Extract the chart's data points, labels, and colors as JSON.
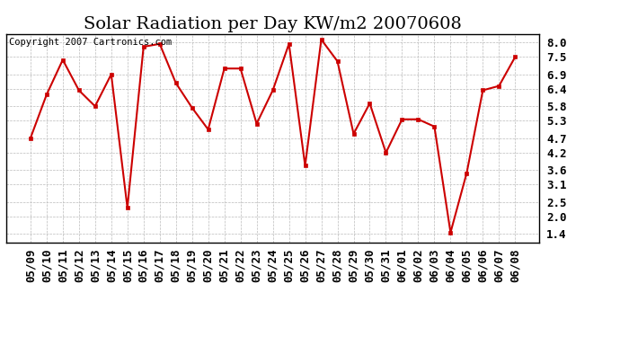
{
  "title": "Solar Radiation per Day KW/m2 20070608",
  "copyright_text": "Copyright 2007 Cartronics.com",
  "dates": [
    "05/09",
    "05/10",
    "05/11",
    "05/12",
    "05/13",
    "05/14",
    "05/15",
    "05/16",
    "05/17",
    "05/18",
    "05/19",
    "05/20",
    "05/21",
    "05/22",
    "05/23",
    "05/24",
    "05/25",
    "05/26",
    "05/27",
    "05/28",
    "05/29",
    "05/30",
    "05/31",
    "06/01",
    "06/02",
    "06/03",
    "06/04",
    "06/05",
    "06/06",
    "06/07",
    "06/08"
  ],
  "values": [
    4.7,
    6.2,
    7.4,
    6.35,
    5.8,
    6.9,
    2.3,
    7.85,
    7.95,
    6.6,
    5.75,
    5.0,
    7.1,
    7.1,
    5.2,
    6.35,
    7.95,
    3.75,
    8.1,
    7.35,
    4.85,
    5.9,
    4.2,
    5.35,
    5.35,
    5.1,
    1.45,
    3.5,
    6.35,
    6.5,
    7.5
  ],
  "line_color": "#cc0000",
  "marker_color": "#cc0000",
  "bg_color": "#ffffff",
  "grid_color": "#bbbbbb",
  "ylim": [
    1.1,
    8.3
  ],
  "yticks": [
    1.4,
    2.0,
    2.5,
    3.1,
    3.6,
    4.2,
    4.7,
    5.3,
    5.8,
    6.4,
    6.9,
    7.5,
    8.0
  ],
  "title_fontsize": 14,
  "tick_fontsize": 9,
  "copyright_fontsize": 7.5
}
